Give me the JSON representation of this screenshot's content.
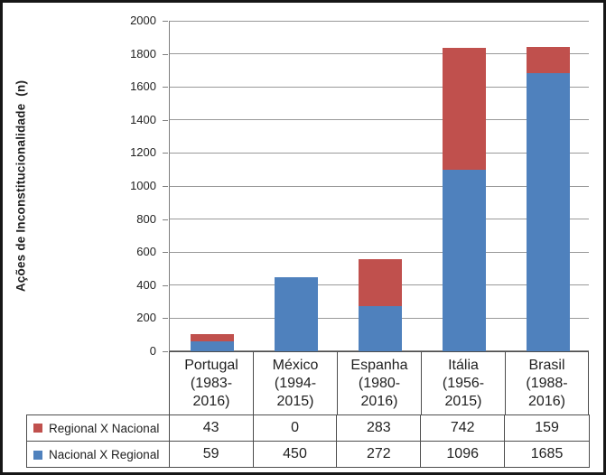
{
  "figure": {
    "background": "#ffffff",
    "frame_color": "#161616",
    "text_color": "#1f1f1f",
    "gridline_color": "#999999",
    "axis_color": "#7f7f7f",
    "table_border_color": "#4d4d4d"
  },
  "chart_data": {
    "type": "bar",
    "stacked": true,
    "title": "",
    "xlabel": "",
    "ylabel": "Ações de Inconstitucionalidade  (n)",
    "ylim": [
      0,
      2000
    ],
    "ytick_step": 200,
    "yticks": [
      0,
      200,
      400,
      600,
      800,
      1000,
      1200,
      1400,
      1600,
      1800,
      2000
    ],
    "grid": true,
    "legend_position": "data-table-left",
    "categories": [
      "Portugal (1983-2016)",
      "México (1994-2015)",
      "Espanha (1980-2016)",
      "Itália (1956-2015)",
      "Brasil (1988-2016)"
    ],
    "category_label_lines": [
      [
        "Portugal",
        "(1983-",
        "2016)"
      ],
      [
        "México",
        "(1994-",
        "2015)"
      ],
      [
        "Espanha",
        "(1980-",
        "2016)"
      ],
      [
        "Itália",
        "(1956-",
        "2015)"
      ],
      [
        "Brasil",
        "(1988-",
        "2016)"
      ]
    ],
    "series": [
      {
        "name": "Nacional X Regional",
        "color": "#4F81BD",
        "stack": "bottom",
        "values": [
          59,
          450,
          272,
          1096,
          1685
        ]
      },
      {
        "name": "Regional X Nacional",
        "color": "#C0504D",
        "stack": "top",
        "values": [
          43,
          0,
          283,
          742,
          159
        ]
      }
    ],
    "data_table_rows": [
      {
        "label": "Regional X Nacional",
        "swatch_color": "#C0504D",
        "values": [
          "43",
          "0",
          "283",
          "742",
          "159"
        ]
      },
      {
        "label": "Nacional X Regional",
        "swatch_color": "#4F81BD",
        "values": [
          "59",
          "450",
          "272",
          "1096",
          "1685"
        ]
      }
    ]
  }
}
